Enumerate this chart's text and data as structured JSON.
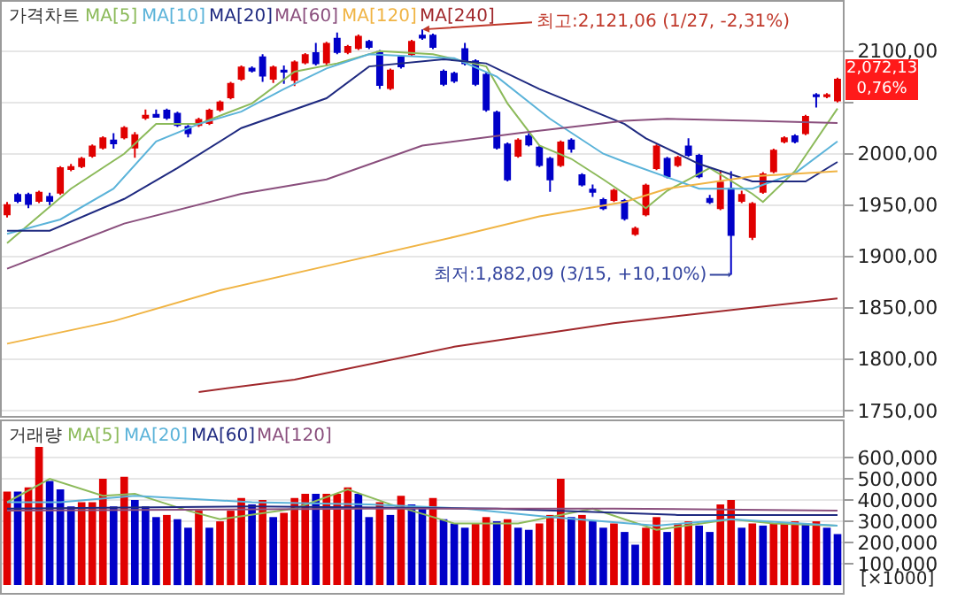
{
  "chart_data": [
    {
      "type": "candlestick",
      "title": "가격차트",
      "categories": [
        null,
        null,
        null,
        null,
        null,
        null,
        null,
        null,
        null,
        null,
        null,
        null,
        null,
        null,
        null,
        null,
        null,
        null,
        null,
        null,
        null,
        null,
        null,
        null,
        null,
        null,
        null,
        null,
        null,
        null,
        null,
        null,
        null,
        null,
        null,
        null,
        null,
        null,
        null,
        null,
        null,
        null,
        null,
        null,
        null,
        null,
        null,
        null,
        null,
        null,
        null,
        null,
        null,
        null,
        null,
        null,
        null,
        null,
        null,
        null,
        null,
        null,
        null,
        null,
        null,
        null,
        null,
        null,
        null,
        null,
        null,
        null,
        null,
        null,
        null,
        null,
        null,
        null,
        null
      ],
      "ohlc": [
        [
          1941,
          1953,
          1938,
          1950
        ],
        [
          1960,
          1962,
          1952,
          1954
        ],
        [
          1960,
          1962,
          1947,
          1951
        ],
        [
          1954,
          1964,
          1952,
          1962
        ],
        [
          1958,
          1962,
          1950,
          1954
        ],
        [
          1962,
          1988,
          1960,
          1986
        ],
        [
          1985,
          1990,
          1983,
          1987
        ],
        [
          1988,
          1997,
          1986,
          1995
        ],
        [
          1998,
          2009,
          1996,
          2007
        ],
        [
          2006,
          2017,
          2004,
          2015
        ],
        [
          2013,
          2020,
          2005,
          2010
        ],
        [
          2016,
          2027,
          2014,
          2025
        ],
        [
          2006,
          2021,
          1996,
          2018
        ],
        [
          2035,
          2043,
          2033,
          2037
        ],
        [
          2038,
          2043,
          2035,
          2036
        ],
        [
          2042,
          2044,
          2033,
          2035
        ],
        [
          2039,
          2041,
          2026,
          2028
        ],
        [
          2026,
          2028,
          2016,
          2020
        ],
        [
          2028,
          2035,
          2026,
          2033
        ],
        [
          2030,
          2044,
          2028,
          2042
        ],
        [
          2043,
          2052,
          2041,
          2050
        ],
        [
          2055,
          2070,
          2053,
          2068
        ],
        [
          2073,
          2086,
          2071,
          2084
        ],
        [
          2083,
          2085,
          2079,
          2081
        ],
        [
          2094,
          2097,
          2070,
          2076
        ],
        [
          2073,
          2086,
          2069,
          2084
        ],
        [
          2081,
          2086,
          2068,
          2080
        ],
        [
          2072,
          2091,
          2066,
          2089
        ],
        [
          2089,
          2098,
          2087,
          2096
        ],
        [
          2098,
          2108,
          2086,
          2088
        ],
        [
          2089,
          2109,
          2085,
          2107
        ],
        [
          2112,
          2118,
          2097,
          2099
        ],
        [
          2099,
          2106,
          2097,
          2104
        ],
        [
          2103,
          2116,
          2101,
          2114
        ],
        [
          2109,
          2111,
          2102,
          2104
        ],
        [
          2099,
          2101,
          2063,
          2067
        ],
        [
          2064,
          2083,
          2062,
          2081
        ],
        [
          2094,
          2096,
          2083,
          2085
        ],
        [
          2097,
          2111,
          2095,
          2109
        ],
        [
          2115,
          2121.06,
          2111,
          2113
        ],
        [
          2115,
          2117,
          2102,
          2104
        ],
        [
          2080,
          2082,
          2066,
          2068
        ],
        [
          2078,
          2080,
          2069,
          2071
        ],
        [
          2102,
          2108,
          2086,
          2088
        ],
        [
          2090,
          2092,
          2066,
          2068
        ],
        [
          2077,
          2079,
          2041,
          2043
        ],
        [
          2040,
          2042,
          2004,
          2006
        ],
        [
          2009,
          2011,
          1973,
          1975
        ],
        [
          1998,
          2015,
          1996,
          2013
        ],
        [
          2017,
          2020,
          2007,
          2009
        ],
        [
          2006,
          2008,
          1987,
          1989
        ],
        [
          1995,
          1997,
          1963,
          1975
        ],
        [
          1989,
          2013,
          1987,
          2011
        ],
        [
          2013,
          2015,
          2001,
          2005
        ],
        [
          1979,
          1981,
          1968,
          1970
        ],
        [
          1965,
          1970,
          1958,
          1963
        ],
        [
          1955,
          1957,
          1945,
          1947
        ],
        [
          1955,
          1966,
          1953,
          1964
        ],
        [
          1954,
          1956,
          1935,
          1937
        ],
        [
          1922,
          1929,
          1920,
          1927
        ],
        [
          1941,
          1971,
          1939,
          1969
        ],
        [
          1986,
          2009,
          1984,
          2007
        ],
        [
          1995,
          1997,
          1976,
          1978
        ],
        [
          1989,
          1998,
          1987,
          1996
        ],
        [
          2007,
          2015,
          1997,
          1999
        ],
        [
          1998,
          2000,
          1976,
          1978
        ],
        [
          1956,
          1960,
          1951,
          1953
        ],
        [
          1947,
          1984,
          1945,
          1972
        ],
        [
          1966,
          1983,
          1882.09,
          1921
        ],
        [
          1954,
          1964,
          1952,
          1960
        ],
        [
          1919,
          1953,
          1916,
          1951
        ],
        [
          1963,
          1982,
          1961,
          1980
        ],
        [
          1983,
          2005,
          1981,
          2003
        ],
        [
          2012,
          2017,
          2010,
          2015
        ],
        [
          2017,
          2019,
          2010,
          2012
        ],
        [
          2020,
          2038,
          2018,
          2036
        ],
        [
          2057,
          2059,
          2045,
          2056
        ],
        [
          2056,
          2059,
          2054,
          2057
        ],
        [
          2052,
          2074,
          2050,
          2072.13
        ]
      ],
      "series": [
        {
          "name": "MA[5]",
          "type": "line",
          "color": "#8cba5a",
          "values": [
            1913,
            null,
            null,
            null,
            null,
            null,
            1966,
            null,
            null,
            null,
            null,
            2000,
            null,
            null,
            2029,
            null,
            null,
            null,
            2029,
            null,
            null,
            null,
            null,
            2049,
            null,
            null,
            null,
            2080,
            null,
            null,
            null,
            2088,
            null,
            null,
            null,
            2100,
            null,
            null,
            null,
            null,
            2097,
            null,
            null,
            null,
            null,
            2085,
            null,
            2049,
            null,
            null,
            2008,
            null,
            null,
            1995,
            null,
            null,
            1975,
            null,
            null,
            null,
            1947,
            null,
            1964,
            null,
            null,
            null,
            1986,
            null,
            null,
            null,
            1961,
            1953,
            null,
            null,
            1983,
            null,
            null,
            null,
            2044
          ]
        },
        {
          "name": "MA[10]",
          "type": "line",
          "color": "#5bb3d9",
          "values": [
            1922,
            null,
            null,
            null,
            null,
            1936,
            null,
            null,
            null,
            null,
            1966,
            null,
            null,
            null,
            2012,
            null,
            null,
            null,
            2029,
            null,
            null,
            null,
            2041,
            null,
            null,
            null,
            2063,
            null,
            null,
            null,
            2083,
            null,
            null,
            null,
            2097,
            null,
            null,
            null,
            null,
            null,
            null,
            null,
            2093,
            null,
            null,
            null,
            2075,
            null,
            null,
            null,
            null,
            2034,
            null,
            null,
            null,
            null,
            2000,
            null,
            1992,
            null,
            null,
            null,
            null,
            null,
            null,
            1966,
            null,
            null,
            null,
            null,
            1966,
            null,
            null,
            null,
            1981,
            null,
            null,
            null,
            2012
          ]
        },
        {
          "name": "MA[20]",
          "type": "line",
          "color": "#1f2a80",
          "values": [
            1925,
            null,
            null,
            null,
            1925,
            null,
            null,
            null,
            null,
            null,
            null,
            1956,
            null,
            null,
            null,
            null,
            1986,
            null,
            null,
            null,
            null,
            null,
            2025,
            null,
            null,
            null,
            null,
            null,
            null,
            null,
            2054,
            null,
            null,
            null,
            2085,
            null,
            null,
            null,
            null,
            null,
            null,
            2092,
            null,
            null,
            null,
            2088,
            null,
            null,
            null,
            null,
            2063,
            null,
            null,
            null,
            null,
            null,
            null,
            null,
            2029,
            null,
            2015,
            null,
            null,
            null,
            null,
            1990,
            null,
            null,
            null,
            null,
            1973,
            null,
            null,
            null,
            null,
            1973,
            null,
            null,
            1992
          ]
        },
        {
          "name": "MA[60]",
          "type": "line",
          "color": "#8a4f7d",
          "values": [
            1888,
            null,
            null,
            null,
            null,
            null,
            null,
            null,
            null,
            null,
            null,
            1932,
            null,
            null,
            null,
            null,
            null,
            null,
            null,
            null,
            null,
            null,
            1961,
            null,
            null,
            null,
            null,
            null,
            null,
            null,
            1975,
            null,
            null,
            null,
            null,
            null,
            null,
            null,
            null,
            2008,
            null,
            null,
            null,
            null,
            null,
            null,
            null,
            null,
            2020,
            null,
            null,
            null,
            null,
            null,
            null,
            null,
            null,
            null,
            2032,
            null,
            null,
            null,
            2034,
            null,
            null,
            null,
            null,
            null,
            null,
            null,
            2032,
            null,
            null,
            null,
            null,
            null,
            null,
            null,
            2030
          ]
        },
        {
          "name": "MA[120]",
          "type": "line",
          "color": "#f0b444",
          "values": [
            1815,
            null,
            null,
            null,
            null,
            null,
            null,
            null,
            null,
            null,
            1837,
            null,
            null,
            null,
            null,
            null,
            null,
            null,
            null,
            null,
            1867,
            null,
            null,
            null,
            null,
            null,
            null,
            null,
            null,
            null,
            null,
            1893,
            null,
            null,
            null,
            null,
            null,
            null,
            null,
            null,
            null,
            null,
            1919,
            null,
            null,
            null,
            null,
            null,
            null,
            null,
            1939,
            null,
            null,
            null,
            null,
            null,
            null,
            null,
            1953,
            null,
            null,
            null,
            1966,
            null,
            null,
            null,
            null,
            null,
            null,
            null,
            1978,
            null,
            null,
            null,
            null,
            null,
            null,
            null,
            1983
          ]
        },
        {
          "name": "MA[240]",
          "type": "line",
          "color": "#a0282c",
          "values": [
            null,
            null,
            null,
            null,
            null,
            null,
            null,
            null,
            null,
            null,
            null,
            null,
            null,
            null,
            null,
            null,
            null,
            null,
            1768,
            null,
            null,
            null,
            null,
            null,
            null,
            null,
            null,
            1780,
            null,
            null,
            null,
            null,
            null,
            null,
            null,
            null,
            null,
            null,
            null,
            null,
            null,
            null,
            1812,
            null,
            null,
            null,
            null,
            null,
            null,
            null,
            null,
            null,
            null,
            null,
            null,
            null,
            null,
            1835,
            null,
            null,
            null,
            null,
            null,
            null,
            null,
            null,
            null,
            null,
            null,
            1849,
            null,
            null,
            null,
            null,
            null,
            null,
            null,
            null,
            1859
          ]
        }
      ],
      "ylim": [
        1745,
        2148
      ],
      "yticks": [
        {
          "value": 1750,
          "label": "1750,00"
        },
        {
          "value": 1800,
          "label": "1800,00"
        },
        {
          "value": 1850,
          "label": "1850,00"
        },
        {
          "value": 1900,
          "label": "1900,00"
        },
        {
          "value": 1950,
          "label": "1950,00"
        },
        {
          "value": 2000,
          "label": "2000,00"
        },
        {
          "value": 2050,
          "label": null
        },
        {
          "value": 2100,
          "label": "2100,00"
        }
      ],
      "grid": "y",
      "tick_labels": "y",
      "annotations": [
        "최고:2,121,06 (1/27, -2,31%)",
        "최저:1,882,09 (3/15, +10,10%)",
        "2,072,13\n0,76%"
      ]
    },
    {
      "type": "bar",
      "title": "거래량",
      "categories": [
        null,
        null,
        null,
        null,
        null,
        null,
        null,
        null,
        null,
        null,
        null,
        null,
        null,
        null,
        null,
        null,
        null,
        null,
        null,
        null,
        null,
        null,
        null,
        null,
        null,
        null,
        null,
        null,
        null,
        null,
        null,
        null,
        null,
        null,
        null,
        null,
        null,
        null,
        null,
        null,
        null,
        null,
        null,
        null,
        null,
        null,
        null,
        null,
        null,
        null,
        null,
        null,
        null,
        null,
        null,
        null,
        null,
        null,
        null,
        null,
        null,
        null,
        null,
        null,
        null,
        null,
        null,
        null,
        null,
        null,
        null,
        null,
        null,
        null,
        null,
        null,
        null,
        null,
        null
      ],
      "series": [
        {
          "type": "bar",
          "values": [
            440000,
            440000,
            460000,
            650000,
            490000,
            450000,
            370000,
            390000,
            390000,
            500000,
            370000,
            510000,
            400000,
            370000,
            320000,
            330000,
            310000,
            270000,
            350000,
            270000,
            300000,
            350000,
            410000,
            380000,
            400000,
            320000,
            340000,
            410000,
            430000,
            430000,
            430000,
            430000,
            460000,
            430000,
            320000,
            390000,
            330000,
            420000,
            380000,
            370000,
            410000,
            310000,
            290000,
            270000,
            290000,
            320000,
            300000,
            310000,
            270000,
            260000,
            290000,
            330000,
            500000,
            320000,
            330000,
            300000,
            270000,
            290000,
            250000,
            190000,
            270000,
            320000,
            250000,
            290000,
            300000,
            280000,
            250000,
            380000,
            400000,
            270000,
            290000,
            280000,
            290000,
            290000,
            300000,
            290000,
            300000,
            270000,
            240000
          ],
          "colors": [
            "#e00000",
            "#0000c8",
            "#e00000",
            "#e00000",
            "#0000c8",
            "#0000c8",
            "#0000c8",
            "#e00000",
            "#e00000",
            "#e00000",
            "#0000c8",
            "#e00000",
            "#0000c8",
            "#0000c8",
            "#0000c8",
            "#e00000",
            "#0000c8",
            "#0000c8",
            "#e00000",
            "#0000c8",
            "#e00000",
            "#e00000",
            "#e00000",
            "#0000c8",
            "#e00000",
            "#0000c8",
            "#e00000",
            "#e00000",
            "#e00000",
            "#0000c8",
            "#e00000",
            "#e00000",
            "#e00000",
            "#0000c8",
            "#0000c8",
            "#e00000",
            "#0000c8",
            "#e00000",
            "#0000c8",
            "#0000c8",
            "#e00000",
            "#0000c8",
            "#0000c8",
            "#0000c8",
            "#e00000",
            "#e00000",
            "#0000c8",
            "#e00000",
            "#0000c8",
            "#0000c8",
            "#e00000",
            "#e00000",
            "#e00000",
            "#0000c8",
            "#e00000",
            "#0000c8",
            "#0000c8",
            "#e00000",
            "#0000c8",
            "#0000c8",
            "#e00000",
            "#e00000",
            "#0000c8",
            "#e00000",
            "#e00000",
            "#0000c8",
            "#0000c8",
            "#e00000",
            "#e00000",
            "#0000c8",
            "#e00000",
            "#0000c8",
            "#e00000",
            "#e00000",
            "#e00000",
            "#0000c8",
            "#e00000",
            "#0000c8",
            "#0000c8"
          ]
        },
        {
          "name": "MA[5]",
          "type": "line",
          "color": "#8cba5a",
          "values": [
            390000,
            null,
            null,
            null,
            500000,
            null,
            null,
            null,
            null,
            420000,
            null,
            null,
            430000,
            null,
            null,
            null,
            null,
            350000,
            null,
            null,
            310000,
            null,
            null,
            null,
            null,
            null,
            null,
            360000,
            null,
            null,
            null,
            null,
            450000,
            null,
            null,
            null,
            380000,
            null,
            null,
            null,
            null,
            null,
            290000,
            null,
            null,
            null,
            null,
            null,
            290000,
            null,
            null,
            null,
            null,
            null,
            null,
            360000,
            null,
            null,
            null,
            null,
            null,
            260000,
            null,
            null,
            null,
            null,
            null,
            null,
            310000,
            null,
            null,
            null,
            290000,
            null,
            null,
            null,
            null,
            null,
            280000
          ]
        },
        {
          "name": "MA[20]",
          "type": "line",
          "color": "#5bb3d9",
          "values": [
            390000,
            null,
            null,
            null,
            null,
            390000,
            null,
            null,
            null,
            null,
            null,
            null,
            420000,
            null,
            null,
            null,
            null,
            null,
            null,
            null,
            null,
            null,
            null,
            390000,
            null,
            null,
            null,
            null,
            null,
            null,
            null,
            null,
            null,
            null,
            380000,
            null,
            null,
            null,
            null,
            null,
            null,
            null,
            null,
            360000,
            null,
            null,
            null,
            null,
            null,
            null,
            null,
            320000,
            null,
            null,
            null,
            null,
            null,
            null,
            null,
            null,
            null,
            280000,
            null,
            null,
            null,
            null,
            null,
            null,
            310000,
            null,
            null,
            null,
            null,
            null,
            null,
            null,
            null,
            null,
            280000
          ]
        },
        {
          "name": "MA[60]",
          "type": "line",
          "color": "#1f2a80",
          "values": [
            360000,
            null,
            null,
            null,
            null,
            null,
            null,
            null,
            null,
            null,
            null,
            null,
            null,
            null,
            null,
            null,
            null,
            null,
            null,
            null,
            null,
            null,
            null,
            370000,
            null,
            null,
            null,
            null,
            null,
            null,
            null,
            null,
            null,
            null,
            null,
            null,
            null,
            null,
            null,
            null,
            null,
            null,
            null,
            null,
            null,
            null,
            360000,
            null,
            null,
            null,
            null,
            null,
            null,
            null,
            null,
            null,
            null,
            null,
            null,
            null,
            null,
            null,
            null,
            330000,
            null,
            null,
            null,
            null,
            null,
            null,
            null,
            null,
            null,
            null,
            null,
            null,
            null,
            null,
            330000
          ]
        },
        {
          "name": "MA[120]",
          "type": "line",
          "color": "#8a4f7d",
          "values": [
            350000,
            null,
            null,
            null,
            null,
            null,
            null,
            null,
            null,
            null,
            null,
            null,
            null,
            null,
            null,
            null,
            null,
            null,
            null,
            null,
            null,
            null,
            null,
            null,
            null,
            null,
            null,
            null,
            null,
            null,
            null,
            null,
            null,
            null,
            360000,
            null,
            null,
            null,
            null,
            null,
            null,
            null,
            null,
            null,
            null,
            null,
            null,
            null,
            null,
            null,
            null,
            null,
            null,
            null,
            null,
            null,
            null,
            360000,
            null,
            null,
            null,
            null,
            null,
            null,
            null,
            null,
            null,
            null,
            null,
            null,
            null,
            null,
            null,
            null,
            null,
            null,
            null,
            null,
            350000
          ]
        }
      ],
      "ylim": [
        -37000,
        770000
      ],
      "ylabel": "[×1000]",
      "yticks": [
        {
          "value": 100000,
          "label": "100,000"
        },
        {
          "value": 200000,
          "label": "200,000"
        },
        {
          "value": 300000,
          "label": "300,000"
        },
        {
          "value": 400000,
          "label": "400,000"
        },
        {
          "value": 500000,
          "label": "500,000"
        },
        {
          "value": 600000,
          "label": "600,000"
        }
      ],
      "grid": "y",
      "tick_labels": "y"
    }
  ]
}
